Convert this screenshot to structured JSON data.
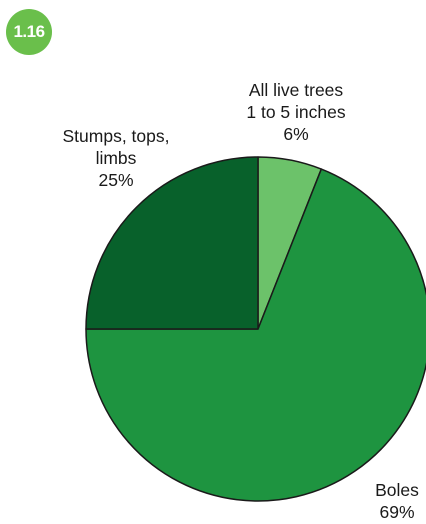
{
  "badge": {
    "text": "1.16",
    "color": "#6abf4b"
  },
  "chart_data": {
    "type": "pie",
    "title": "",
    "start": "12 o'clock, clockwise",
    "slices": [
      {
        "lines": [
          "All live trees",
          "1 to 5 inches",
          "6%"
        ],
        "value": 6,
        "color": "#6cc26a"
      },
      {
        "lines": [
          "Boles",
          "69%"
        ],
        "value": 69,
        "color": "#1e9440"
      },
      {
        "lines": [
          "Stumps, tops,",
          "limbs",
          "25%"
        ],
        "value": 25,
        "color": "#08612b"
      }
    ],
    "slice_border_color": "#1a1a1a"
  }
}
